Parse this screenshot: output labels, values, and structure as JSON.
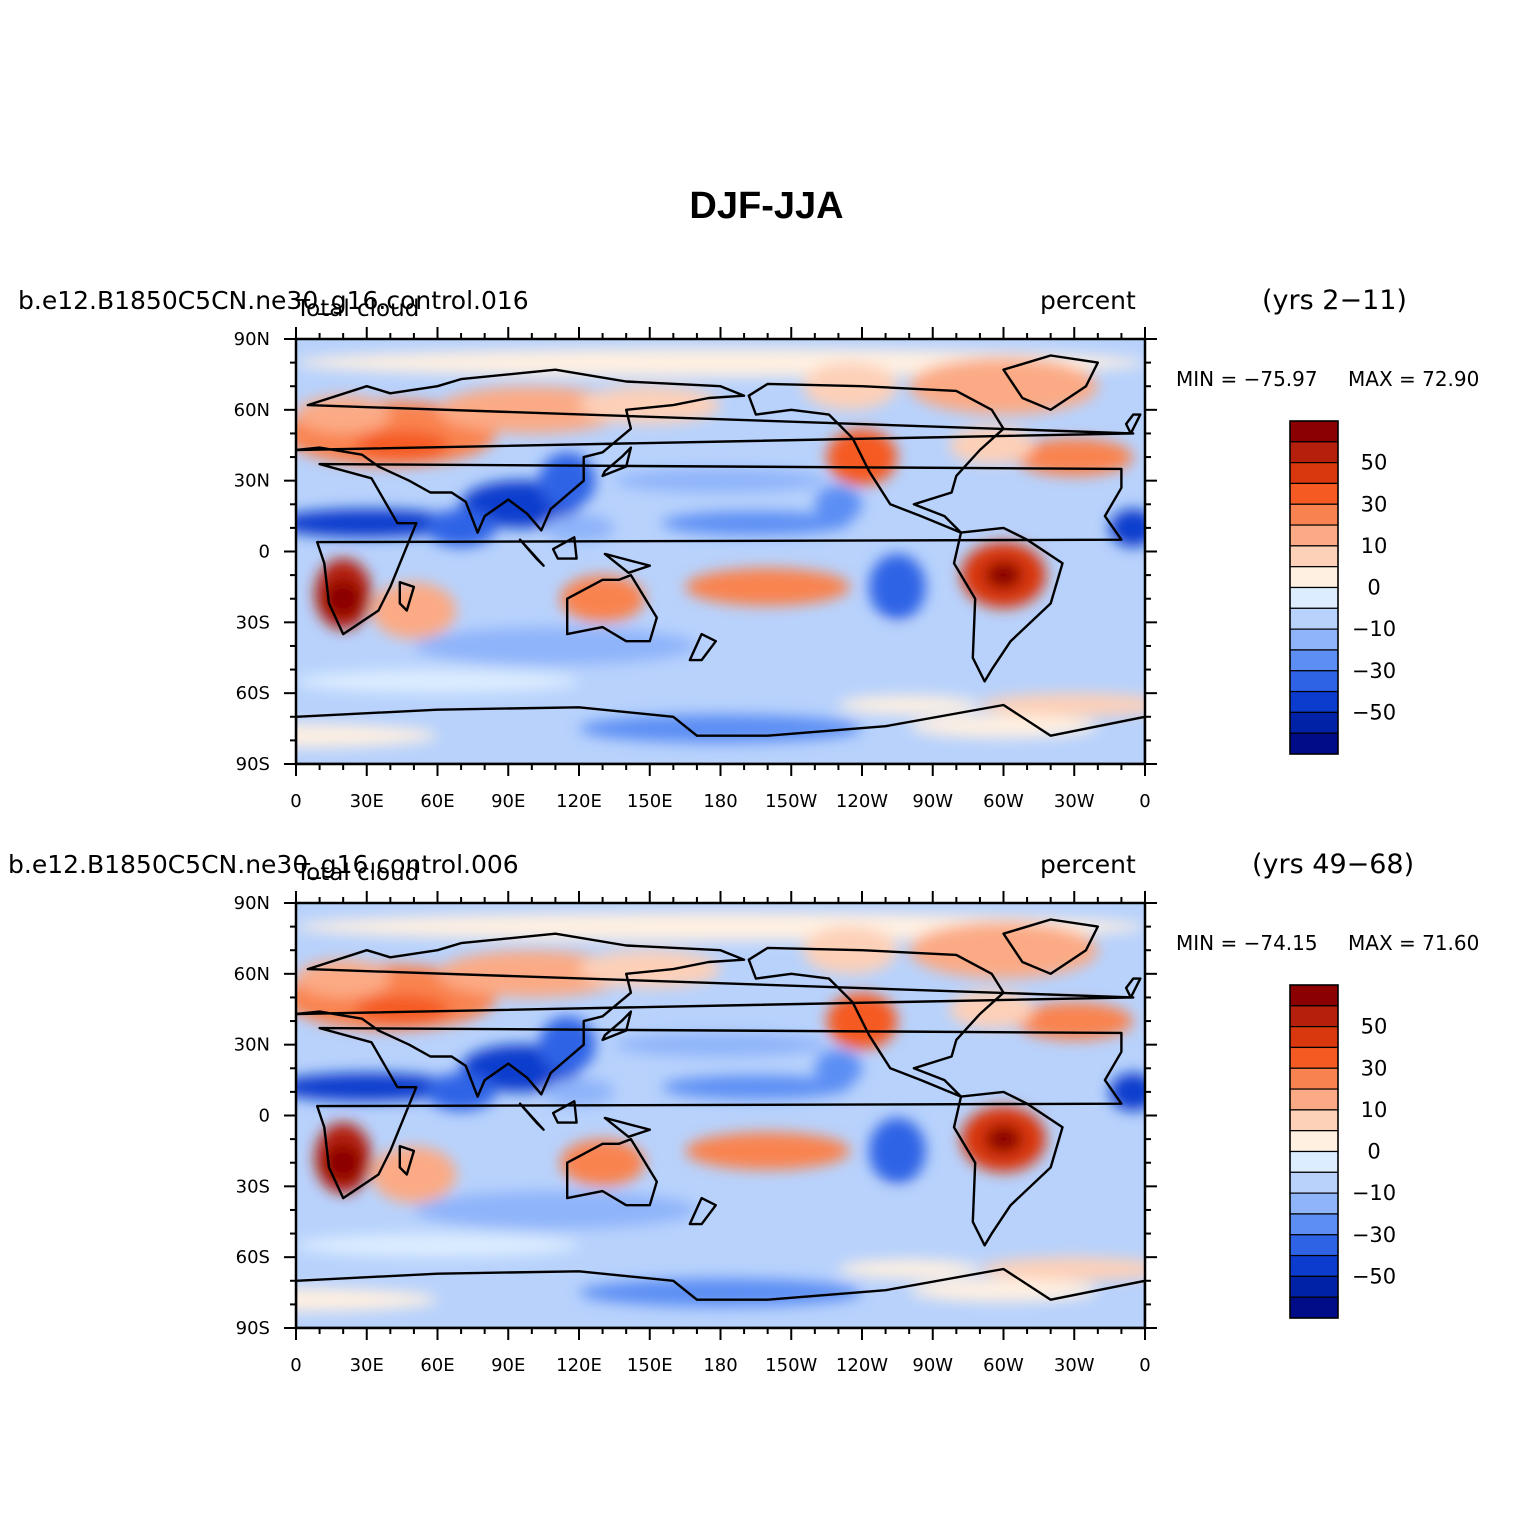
{
  "title": "DJF-JJA",
  "colormap": {
    "levels": [
      "50",
      "30",
      "10",
      "0",
      "−10",
      "−30",
      "−50"
    ],
    "colors": [
      "#8b0000",
      "#b5200d",
      "#d9380e",
      "#f55a22",
      "#f98350",
      "#fbaa85",
      "#fdd0b8",
      "#fff0e1",
      "#dcedff",
      "#b8d2fc",
      "#8fb4fa",
      "#5c8ef4",
      "#2f63e6",
      "#0c3ccd",
      "#0022a6",
      "#000c88"
    ]
  },
  "axes": {
    "lat_labels": [
      "90N",
      "60N",
      "30N",
      "0",
      "30S",
      "60S",
      "90S"
    ],
    "lon_labels": [
      "0",
      "30E",
      "60E",
      "90E",
      "120E",
      "150E",
      "180",
      "150W",
      "120W",
      "90W",
      "60W",
      "30W",
      "0"
    ]
  },
  "panels": [
    {
      "case": "b.e12.B1850C5CN.ne30_g16.control.016",
      "variable": "Total cloud",
      "units": "percent",
      "years": "(yrs 2−11)",
      "min_label": "MIN = −75.97",
      "max_label": "MAX =  72.90"
    },
    {
      "case": "b.e12.B1850C5CN.ne30_g16.control.006",
      "variable": "Total cloud",
      "units": "percent",
      "years": "(yrs 49−68)",
      "min_label": "MIN = −74.15",
      "max_label": "MAX =  71.60"
    }
  ]
}
